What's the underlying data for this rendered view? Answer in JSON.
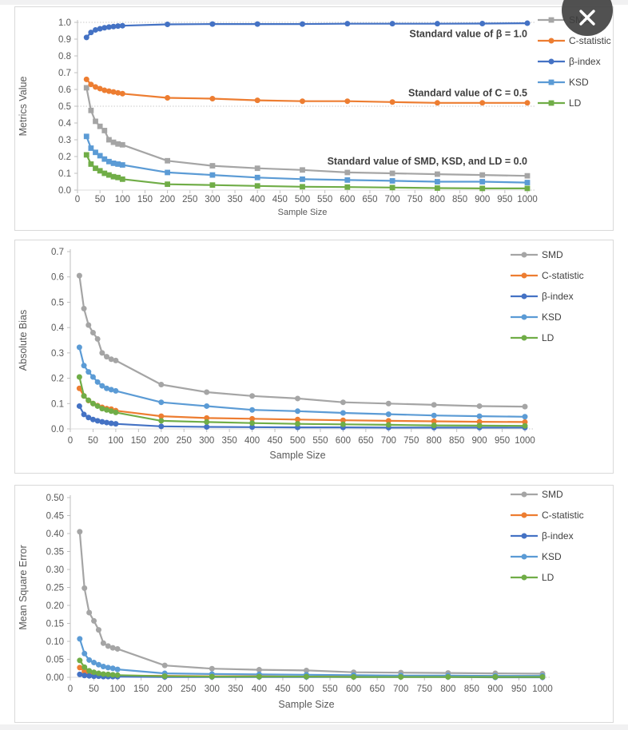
{
  "close_button": {
    "label": "Close"
  },
  "colors": {
    "panel_border": "#d9d9d9",
    "axis": "#bfbfbf",
    "reference_line": "#c8c8c8",
    "tick_text": "#595959",
    "annotation_text": "#3f3f3f",
    "legend_text": "#404040",
    "close_button_bg": "#3e3e3e",
    "close_button_glyph": "#ffffff"
  },
  "chart_data": [
    {
      "type": "line",
      "title": "",
      "xlabel": "Sample Size",
      "ylabel": "Metrics Value",
      "ylim": [
        0,
        1.0
      ],
      "ytick_step": 0.1,
      "ytick_decimals": 1,
      "grid": false,
      "legend_position": "right",
      "reference_lines": [
        0,
        0.5,
        1.0
      ],
      "annotations": [
        {
          "text": "Standard value of β = 1.0",
          "x": 1000,
          "y": 0.93,
          "anchor": "end"
        },
        {
          "text": "Standard value of C = 0.5",
          "x": 1000,
          "y": 0.578,
          "anchor": "end"
        },
        {
          "text": "Standard value of SMD, KSD, and LD = 0.0",
          "x": 1000,
          "y": 0.172,
          "anchor": "end"
        }
      ],
      "xticks": [
        0,
        50,
        100,
        150,
        200,
        250,
        300,
        350,
        400,
        450,
        500,
        550,
        600,
        650,
        700,
        750,
        800,
        850,
        900,
        950,
        1000
      ],
      "x": [
        20,
        30,
        40,
        50,
        60,
        70,
        80,
        90,
        100,
        200,
        300,
        400,
        500,
        600,
        700,
        800,
        900,
        1000
      ],
      "series": [
        {
          "key": "smd",
          "name": "SMD",
          "color": "#A5A5A5",
          "marker": "square",
          "values": [
            0.61,
            0.475,
            0.41,
            0.38,
            0.355,
            0.3,
            0.285,
            0.275,
            0.27,
            0.175,
            0.145,
            0.13,
            0.12,
            0.105,
            0.1,
            0.095,
            0.09,
            0.085
          ]
        },
        {
          "key": "c-statistic",
          "name": "C-statistic",
          "color": "#ED7D31",
          "marker": "circle",
          "values": [
            0.66,
            0.63,
            0.615,
            0.605,
            0.595,
            0.59,
            0.585,
            0.58,
            0.575,
            0.55,
            0.545,
            0.535,
            0.53,
            0.53,
            0.525,
            0.52,
            0.52,
            0.52
          ]
        },
        {
          "key": "beta-index",
          "name": "β-index",
          "color": "#4472C4",
          "marker": "circle",
          "values": [
            0.91,
            0.94,
            0.955,
            0.962,
            0.968,
            0.972,
            0.975,
            0.978,
            0.98,
            0.988,
            0.99,
            0.99,
            0.99,
            0.992,
            0.992,
            0.992,
            0.993,
            0.995
          ]
        },
        {
          "key": "ksd",
          "name": "KSD",
          "color": "#5B9BD5",
          "marker": "square",
          "values": [
            0.32,
            0.25,
            0.225,
            0.205,
            0.185,
            0.17,
            0.16,
            0.155,
            0.15,
            0.105,
            0.09,
            0.075,
            0.065,
            0.06,
            0.055,
            0.05,
            0.05,
            0.045
          ]
        },
        {
          "key": "ld",
          "name": "LD",
          "color": "#70AD47",
          "marker": "square",
          "values": [
            0.21,
            0.155,
            0.13,
            0.115,
            0.1,
            0.09,
            0.08,
            0.075,
            0.065,
            0.035,
            0.03,
            0.025,
            0.02,
            0.018,
            0.015,
            0.012,
            0.01,
            0.01
          ]
        }
      ]
    },
    {
      "type": "line",
      "title": "",
      "xlabel": "Sample Size",
      "ylabel": "Absolute Bias",
      "ylim": [
        0,
        0.7
      ],
      "ytick_step": 0.1,
      "ytick_decimals": 1,
      "grid": false,
      "legend_position": "right",
      "reference_lines": [
        0
      ],
      "annotations": [],
      "xticks": [
        0,
        50,
        100,
        150,
        200,
        250,
        300,
        350,
        400,
        450,
        500,
        550,
        600,
        650,
        700,
        750,
        800,
        850,
        900,
        950,
        1000
      ],
      "x": [
        20,
        30,
        40,
        50,
        60,
        70,
        80,
        90,
        100,
        200,
        300,
        400,
        500,
        600,
        700,
        800,
        900,
        1000
      ],
      "series": [
        {
          "key": "smd",
          "name": "SMD",
          "color": "#A5A5A5",
          "marker": "circle",
          "values": [
            0.605,
            0.475,
            0.41,
            0.38,
            0.355,
            0.3,
            0.285,
            0.275,
            0.27,
            0.175,
            0.145,
            0.13,
            0.12,
            0.105,
            0.1,
            0.095,
            0.09,
            0.088
          ]
        },
        {
          "key": "c-statistic",
          "name": "C-statistic",
          "color": "#ED7D31",
          "marker": "circle",
          "values": [
            0.16,
            0.13,
            0.112,
            0.1,
            0.092,
            0.085,
            0.08,
            0.078,
            0.072,
            0.05,
            0.043,
            0.04,
            0.037,
            0.034,
            0.032,
            0.03,
            0.028,
            0.027
          ]
        },
        {
          "key": "beta-index",
          "name": "β-index",
          "color": "#4472C4",
          "marker": "circle",
          "values": [
            0.09,
            0.057,
            0.045,
            0.037,
            0.032,
            0.028,
            0.025,
            0.022,
            0.02,
            0.01,
            0.008,
            0.007,
            0.006,
            0.006,
            0.005,
            0.005,
            0.005,
            0.005
          ]
        },
        {
          "key": "ksd",
          "name": "KSD",
          "color": "#5B9BD5",
          "marker": "circle",
          "values": [
            0.322,
            0.25,
            0.225,
            0.205,
            0.185,
            0.17,
            0.16,
            0.155,
            0.15,
            0.105,
            0.09,
            0.075,
            0.07,
            0.063,
            0.058,
            0.053,
            0.05,
            0.048
          ]
        },
        {
          "key": "ld",
          "name": "LD",
          "color": "#70AD47",
          "marker": "circle",
          "values": [
            0.205,
            0.13,
            0.113,
            0.1,
            0.09,
            0.08,
            0.075,
            0.07,
            0.065,
            0.032,
            0.027,
            0.023,
            0.02,
            0.018,
            0.016,
            0.014,
            0.013,
            0.012
          ]
        }
      ]
    },
    {
      "type": "line",
      "title": "",
      "xlabel": "Sample Size",
      "ylabel": "Mean Square Error",
      "ylim": [
        0,
        0.5
      ],
      "ytick_step": 0.05,
      "ytick_decimals": 2,
      "grid": false,
      "legend_position": "right",
      "reference_lines": [
        0
      ],
      "annotations": [],
      "xticks": [
        0,
        50,
        100,
        150,
        200,
        250,
        300,
        350,
        400,
        450,
        500,
        550,
        600,
        650,
        700,
        750,
        800,
        850,
        900,
        950,
        1000
      ],
      "x": [
        20,
        30,
        40,
        50,
        60,
        70,
        80,
        90,
        100,
        200,
        300,
        400,
        500,
        600,
        700,
        800,
        900,
        1000
      ],
      "series": [
        {
          "key": "smd",
          "name": "SMD",
          "color": "#A5A5A5",
          "marker": "circle",
          "values": [
            0.405,
            0.248,
            0.18,
            0.157,
            0.132,
            0.095,
            0.087,
            0.082,
            0.079,
            0.033,
            0.024,
            0.021,
            0.019,
            0.014,
            0.013,
            0.012,
            0.011,
            0.01
          ]
        },
        {
          "key": "c-statistic",
          "name": "C-statistic",
          "color": "#ED7D31",
          "marker": "circle",
          "values": [
            0.027,
            0.016,
            0.011,
            0.009,
            0.008,
            0.007,
            0.006,
            0.006,
            0.005,
            0.004,
            0.003,
            0.003,
            0.002,
            0.002,
            0.002,
            0.002,
            0.002,
            0.002
          ]
        },
        {
          "key": "beta-index",
          "name": "β-index",
          "color": "#4472C4",
          "marker": "circle",
          "values": [
            0.008,
            0.005,
            0.004,
            0.003,
            0.003,
            0.002,
            0.002,
            0.002,
            0.002,
            0.001,
            0.001,
            0.001,
            0.001,
            0.001,
            0.001,
            0.001,
            0.0,
            0.0
          ]
        },
        {
          "key": "ksd",
          "name": "KSD",
          "color": "#5B9BD5",
          "marker": "circle",
          "values": [
            0.107,
            0.066,
            0.048,
            0.041,
            0.035,
            0.03,
            0.027,
            0.025,
            0.022,
            0.011,
            0.009,
            0.008,
            0.007,
            0.006,
            0.005,
            0.005,
            0.004,
            0.004
          ]
        },
        {
          "key": "ld",
          "name": "LD",
          "color": "#70AD47",
          "marker": "circle",
          "values": [
            0.047,
            0.028,
            0.018,
            0.014,
            0.011,
            0.009,
            0.008,
            0.007,
            0.006,
            0.003,
            0.002,
            0.002,
            0.002,
            0.001,
            0.001,
            0.001,
            0.001,
            0.001
          ]
        }
      ]
    }
  ]
}
